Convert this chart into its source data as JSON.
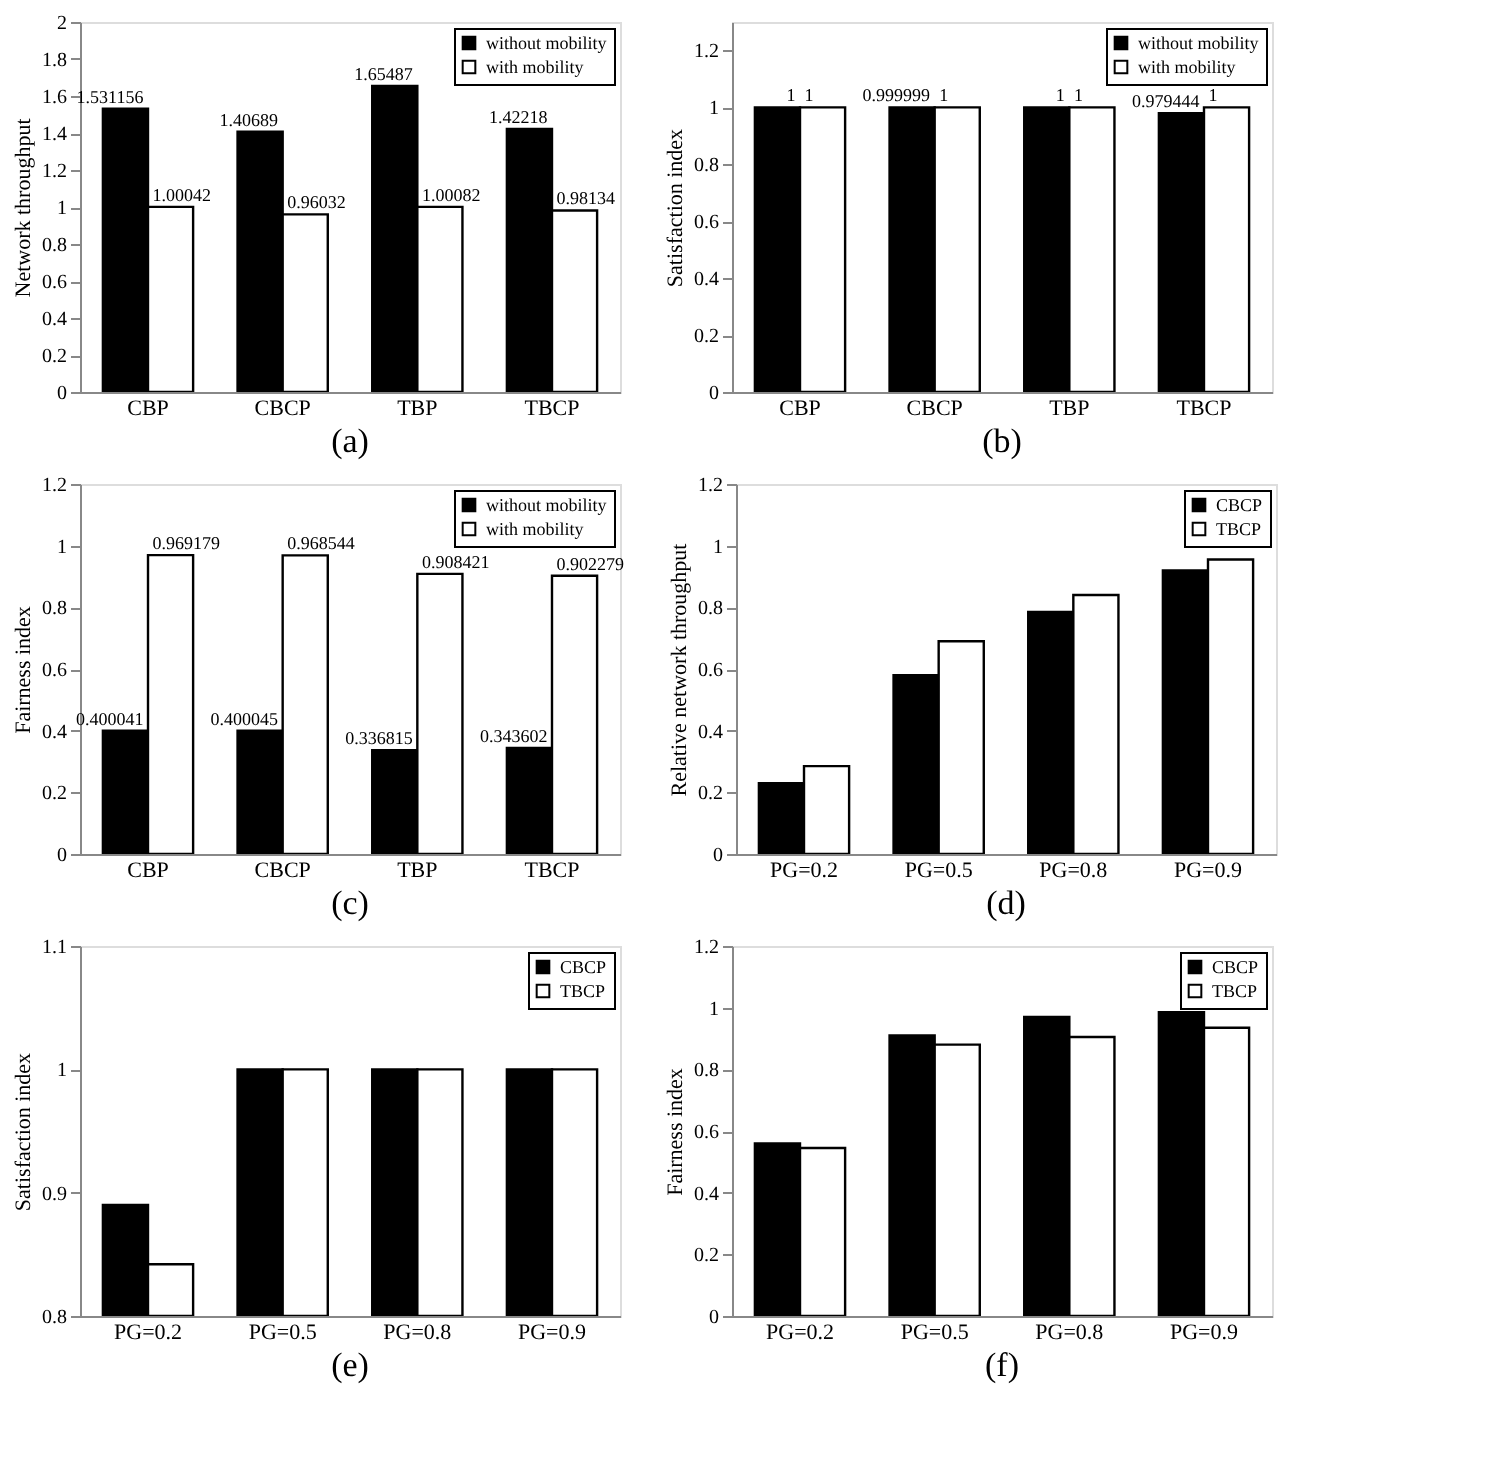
{
  "chart_data": [
    {
      "type": "bar",
      "title": "(a)",
      "ylabel": "Network throughput",
      "categories": [
        "CBP",
        "CBCP",
        "TBP",
        "TBCP"
      ],
      "series": [
        {
          "name": "without mobility",
          "color": "#000000",
          "values": [
            1.531156,
            1.40689,
            1.65487,
            1.42218
          ]
        },
        {
          "name": "with mobility",
          "color": "#ffffff",
          "values": [
            1.00042,
            0.96032,
            1.00082,
            0.98134
          ]
        }
      ],
      "ylim": [
        0,
        2
      ],
      "yticks": [
        0,
        0.2,
        0.4,
        0.6,
        0.8,
        1,
        1.2,
        1.4,
        1.6,
        1.8,
        2
      ],
      "data_labels": true,
      "legend": "top right",
      "grid": false
    },
    {
      "type": "bar",
      "title": "(b)",
      "ylabel": "Satisfaction index",
      "categories": [
        "CBP",
        "CBCP",
        "TBP",
        "TBCP"
      ],
      "series": [
        {
          "name": "without mobility",
          "color": "#000000",
          "values": [
            1,
            0.999999,
            1,
            0.979444
          ]
        },
        {
          "name": "with mobility",
          "color": "#ffffff",
          "values": [
            1,
            1,
            1,
            1
          ]
        }
      ],
      "ylim": [
        0,
        1.3
      ],
      "yticks": [
        0,
        0.2,
        0.4,
        0.6,
        0.8,
        1,
        1.2
      ],
      "data_labels": true,
      "legend": "top right",
      "grid": false
    },
    {
      "type": "bar",
      "title": "(c)",
      "ylabel": "Fairness index",
      "categories": [
        "CBP",
        "CBCP",
        "TBP",
        "TBCP"
      ],
      "series": [
        {
          "name": "without mobility",
          "color": "#000000",
          "values": [
            0.400041,
            0.400045,
            0.336815,
            0.343602
          ]
        },
        {
          "name": "with mobility",
          "color": "#ffffff",
          "values": [
            0.969179,
            0.968544,
            0.908421,
            0.902279
          ]
        }
      ],
      "ylim": [
        0,
        1.2
      ],
      "yticks": [
        0,
        0.2,
        0.4,
        0.6,
        0.8,
        1,
        1.2
      ],
      "data_labels": true,
      "legend": "top right",
      "grid": false
    },
    {
      "type": "bar",
      "title": "(d)",
      "ylabel": "Relative network throughput",
      "categories": [
        "PG=0.2",
        "PG=0.5",
        "PG=0.8",
        "PG=0.9"
      ],
      "series": [
        {
          "name": "CBCP",
          "color": "#000000",
          "values": [
            0.23,
            0.58,
            0.785,
            0.92
          ]
        },
        {
          "name": "TBCP",
          "color": "#ffffff",
          "values": [
            0.285,
            0.69,
            0.84,
            0.955
          ]
        }
      ],
      "ylim": [
        0,
        1.2
      ],
      "yticks": [
        0,
        0.2,
        0.4,
        0.6,
        0.8,
        1,
        1.2
      ],
      "legend": "top right",
      "grid": false
    },
    {
      "type": "bar",
      "title": "(e)",
      "ylabel": "Satisfaction index",
      "categories": [
        "PG=0.2",
        "PG=0.5",
        "PG=0.8",
        "PG=0.9"
      ],
      "series": [
        {
          "name": "CBCP",
          "color": "#000000",
          "values": [
            0.89,
            1,
            1,
            1
          ]
        },
        {
          "name": "TBCP",
          "color": "#ffffff",
          "values": [
            0.842,
            1,
            1,
            1
          ]
        }
      ],
      "ylim": [
        0.8,
        1.1
      ],
      "yticks": [
        0.8,
        0.9,
        1,
        1.1
      ],
      "legend": "top right",
      "grid": false
    },
    {
      "type": "bar",
      "title": "(f)",
      "ylabel": "Fairness index",
      "categories": [
        "PG=0.2",
        "PG=0.5",
        "PG=0.8",
        "PG=0.9"
      ],
      "series": [
        {
          "name": "CBCP",
          "color": "#000000",
          "values": [
            0.56,
            0.91,
            0.97,
            0.985
          ]
        },
        {
          "name": "TBCP",
          "color": "#ffffff",
          "values": [
            0.545,
            0.88,
            0.905,
            0.935
          ]
        }
      ],
      "ylim": [
        0,
        1.2
      ],
      "yticks": [
        0,
        0.2,
        0.4,
        0.6,
        0.8,
        1,
        1.2
      ],
      "legend": "top right",
      "grid": false
    }
  ]
}
